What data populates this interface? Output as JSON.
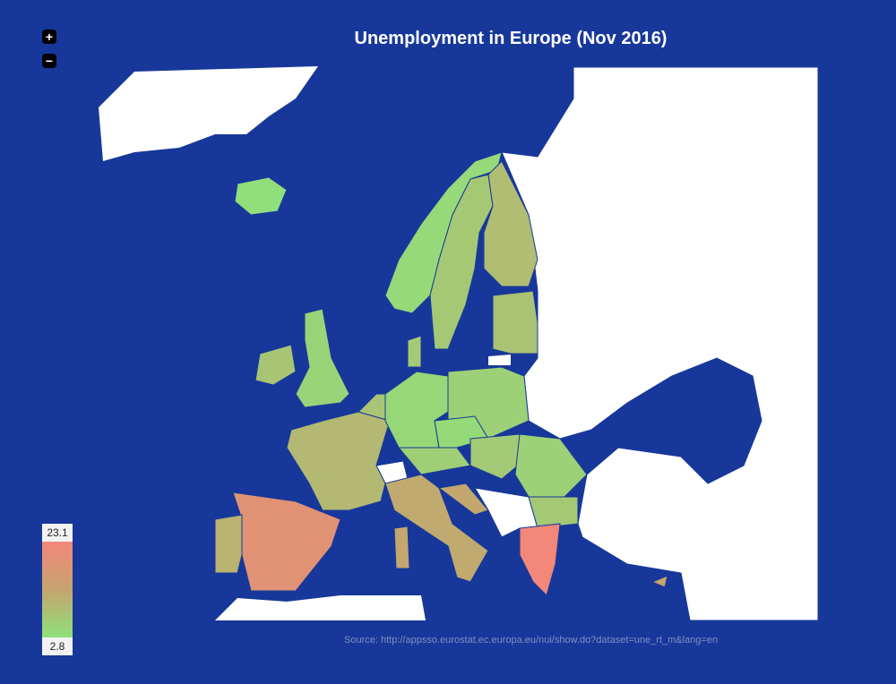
{
  "header": {
    "title": "Unemployment in Europe (Nov 2016)"
  },
  "zoom": {
    "in": "+",
    "out": "−"
  },
  "source": "Source: http://appsso.eurostat.ec.europa.eu/nui/show.do?dataset=une_rt_m&lang=en",
  "legend": {
    "max": 23.1,
    "min": 2.8
  },
  "colors": {
    "low": "#8fe07a",
    "mid": "#c6a46e",
    "high": "#f2877a"
  },
  "map": {
    "values": [
      3.0,
      4.0,
      6.9,
      8.8,
      8.0,
      6.4,
      4.8,
      7.3,
      9.5,
      7.6,
      4.1,
      5.5,
      3.8,
      5.8,
      6.5,
      5.4,
      6.7,
      19.2,
      10.5,
      11.9,
      23.1,
      12.4,
      12.5,
      13.0
    ]
  }
}
